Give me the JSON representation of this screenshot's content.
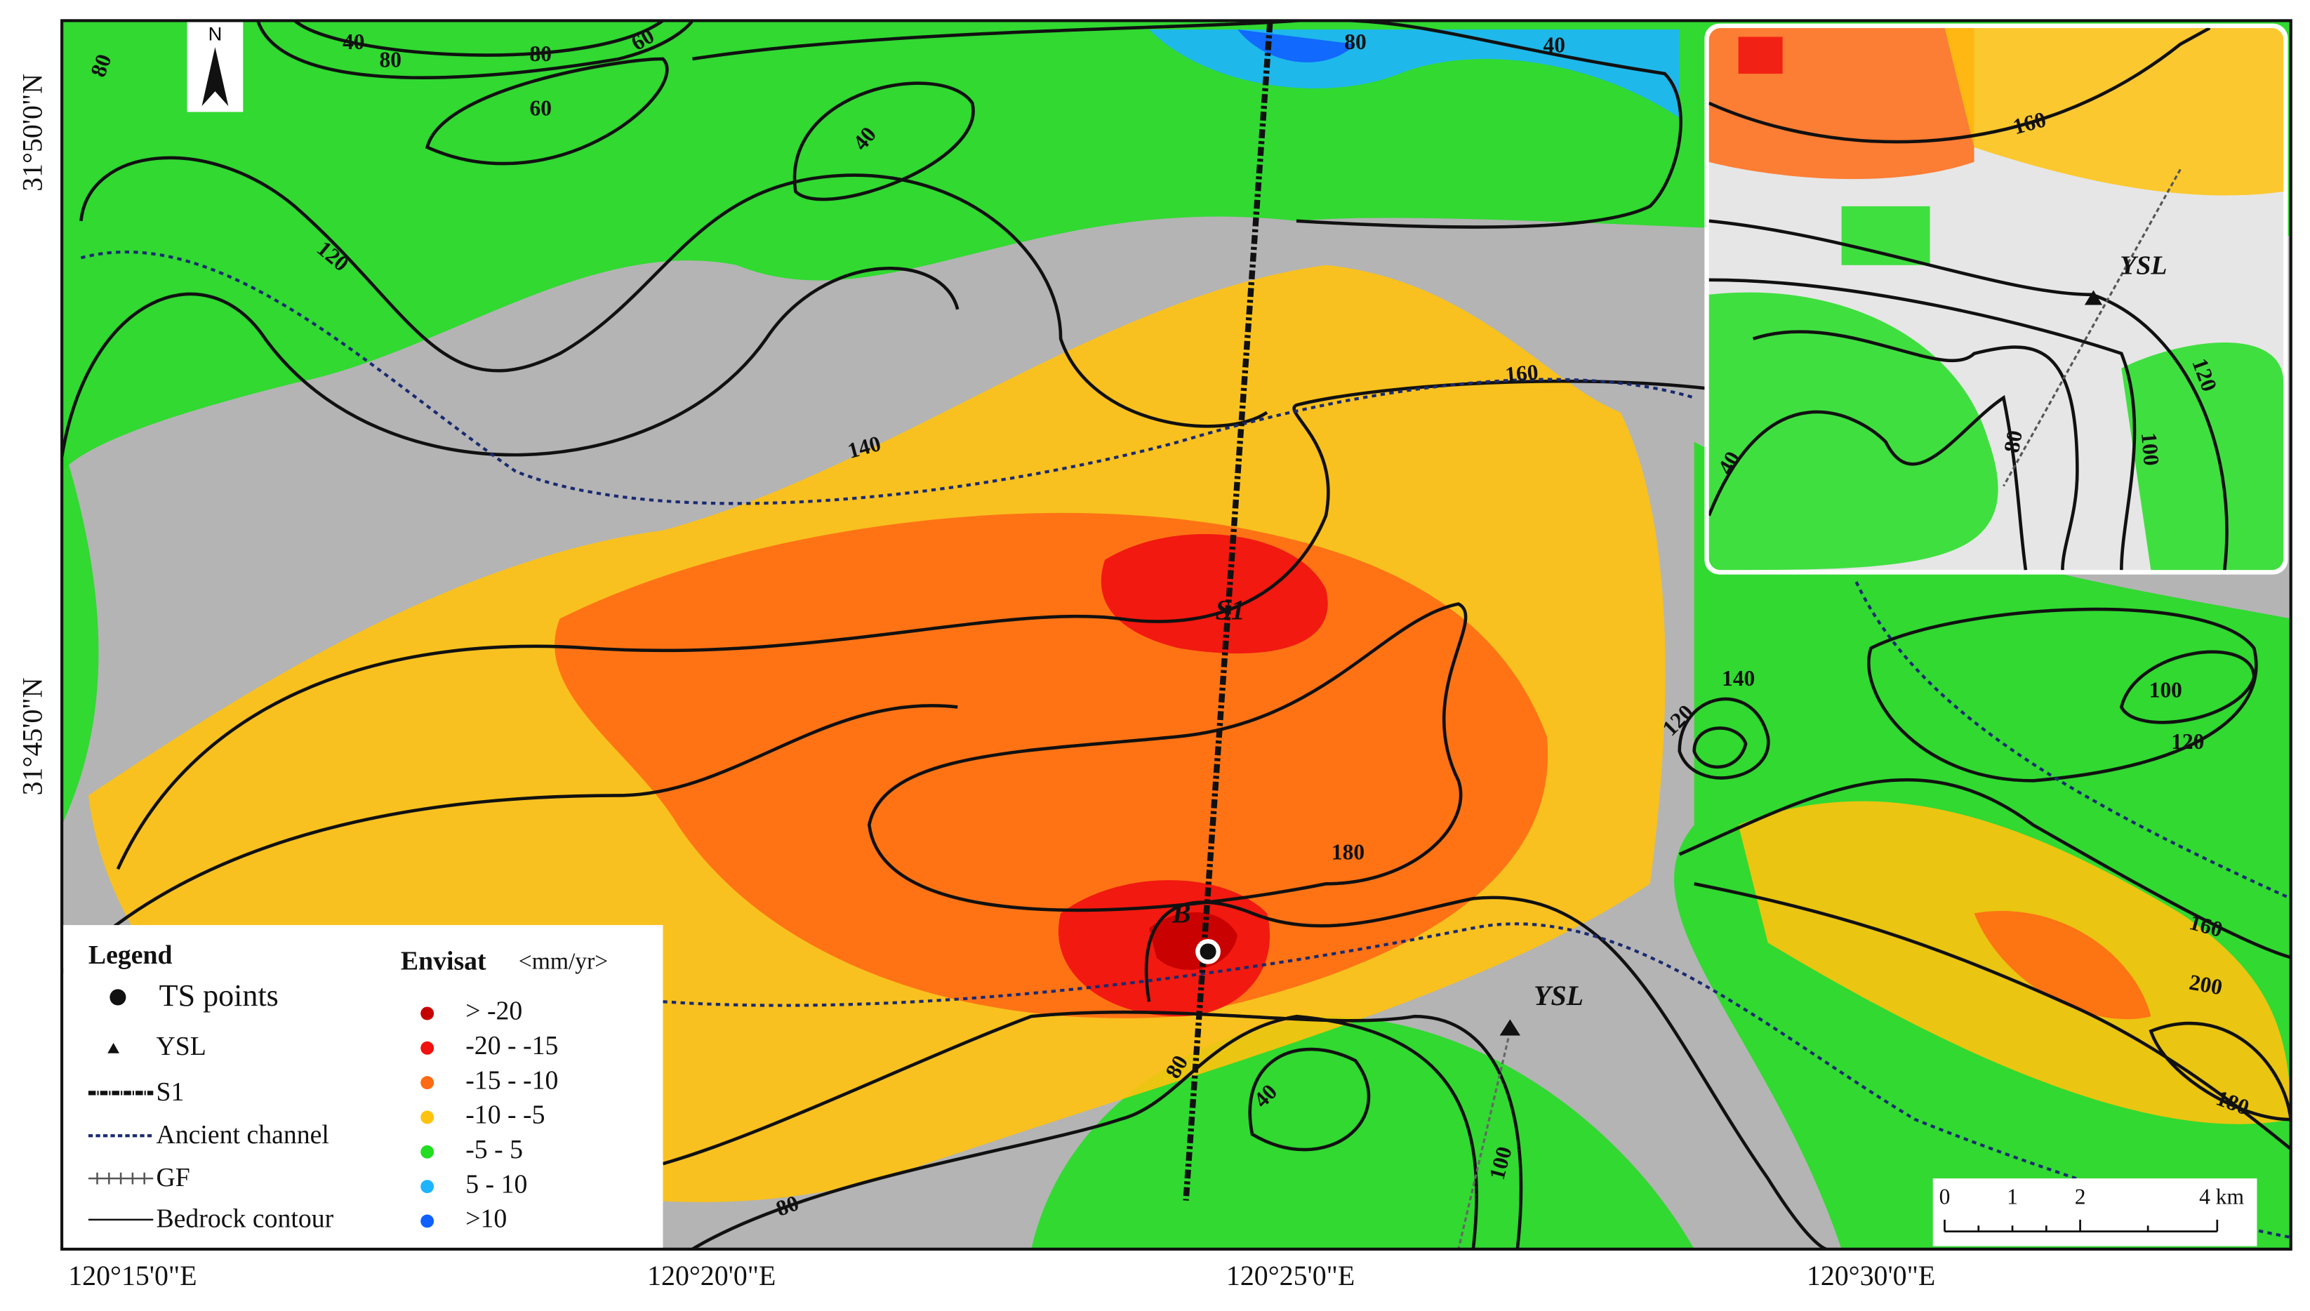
{
  "map": {
    "north_label": "N",
    "latitude_labels": [
      "31°50'0\"N",
      "31°45'0\"N"
    ],
    "longitude_labels": [
      "120°15'0\"E",
      "120°20'0\"E",
      "120°25'0\"E",
      "120°30'0\"E"
    ],
    "contour_labels": [
      "80",
      "40",
      "80",
      "80",
      "60",
      "60",
      "40",
      "80",
      "40",
      "120",
      "140",
      "160",
      "140",
      "120",
      "100",
      "120",
      "180",
      "160",
      "200",
      "180",
      "80",
      "40",
      "100",
      "80"
    ],
    "point_labels": [
      "S1",
      "B",
      "YSL"
    ],
    "inset_labels": [
      "160",
      "YSL",
      "120",
      "80",
      "100",
      "40"
    ],
    "scale_bar": [
      "0",
      "1",
      "2",
      "4 km"
    ],
    "legend": {
      "title": "Legend",
      "items": [
        "TS points",
        "YSL",
        "S1",
        "Ancient channel",
        "GF",
        "Bedrock contour"
      ],
      "envisat": {
        "title": "Envisat",
        "unit": "<mm/yr>",
        "classes": [
          {
            "label": "> -20",
            "color": "#c40000"
          },
          {
            "label": "-20 - -15",
            "color": "#f01010"
          },
          {
            "label": "-15 - -10",
            "color": "#ff6a14"
          },
          {
            "label": "-10 - -5",
            "color": "#ffc20e"
          },
          {
            "label": "-5 - 5",
            "color": "#22dd22"
          },
          {
            "label": "5 - 10",
            "color": "#1eb4ff"
          },
          {
            "label": ">10",
            "color": "#1060ff"
          }
        ]
      }
    }
  }
}
